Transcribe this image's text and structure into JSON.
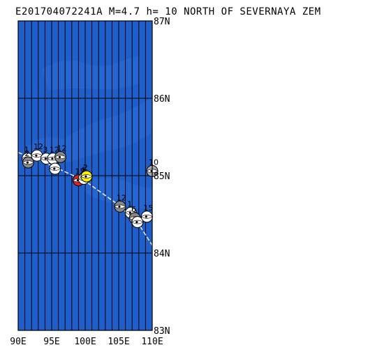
{
  "map": {
    "title": "E201704072241A M=4.7 h= 10 NORTH OF SEVERNAYA ZEM",
    "extent": {
      "lon_min": 90,
      "lon_max": 110,
      "lat_min": 83,
      "lat_max": 87
    },
    "meridian_step_deg": 1,
    "parallel_step_deg": 1,
    "colors": {
      "ocean": "#1f5fcc",
      "land": "#2a6cd8",
      "grid": "#000000",
      "track": "#e8e8e8"
    },
    "lat_labels": [
      {
        "lat": 87,
        "text": "87N"
      },
      {
        "lat": 86,
        "text": "86N"
      },
      {
        "lat": 85,
        "text": "85N"
      },
      {
        "lat": 84,
        "text": "84N"
      },
      {
        "lat": 83,
        "text": "83N"
      }
    ],
    "lon_labels": [
      {
        "lon": 90,
        "text": "90E"
      },
      {
        "lon": 95,
        "text": "95E"
      },
      {
        "lon": 100,
        "text": "100E"
      },
      {
        "lon": 105,
        "text": "105E"
      },
      {
        "lon": 110,
        "text": "110E"
      }
    ],
    "track_line": [
      {
        "lon": 90.0,
        "lat": 85.3
      },
      {
        "lon": 95.0,
        "lat": 85.13
      },
      {
        "lon": 100.0,
        "lat": 84.93
      },
      {
        "lon": 105.0,
        "lat": 84.62
      },
      {
        "lon": 108.0,
        "lat": 84.37
      },
      {
        "lon": 110.0,
        "lat": 84.1
      }
    ],
    "mechanisms": [
      {
        "lon": 91.4,
        "lat": 85.22,
        "label": "1",
        "fill": "#ffffff"
      },
      {
        "lon": 91.5,
        "lat": 85.17,
        "label": "2",
        "fill": "#888888"
      },
      {
        "lon": 92.8,
        "lat": 85.26,
        "label": "12",
        "fill": "#ffffff"
      },
      {
        "lon": 94.2,
        "lat": 85.22,
        "label": "3",
        "fill": "#ffffff"
      },
      {
        "lon": 95.2,
        "lat": 85.22,
        "label": "12",
        "fill": "#ffffff"
      },
      {
        "lon": 96.3,
        "lat": 85.24,
        "label": "12",
        "fill": "#888888"
      },
      {
        "lon": 95.5,
        "lat": 85.09,
        "label": "",
        "fill": "#ffffff"
      },
      {
        "lon": 99.0,
        "lat": 84.94,
        "label": "12",
        "fill": "#dd2222"
      },
      {
        "lon": 99.8,
        "lat": 84.96,
        "label": "4",
        "fill": "#ffffff"
      },
      {
        "lon": 100.2,
        "lat": 84.99,
        "label": "2",
        "fill": "#ffee00"
      },
      {
        "lon": 110.0,
        "lat": 85.06,
        "label": "10",
        "fill": "#aaaaaa"
      },
      {
        "lon": 105.2,
        "lat": 84.6,
        "label": "12",
        "fill": "#888888"
      },
      {
        "lon": 106.8,
        "lat": 84.52,
        "label": "1",
        "fill": "#ffffff"
      },
      {
        "lon": 107.4,
        "lat": 84.45,
        "label": "6",
        "fill": "#888888"
      },
      {
        "lon": 107.8,
        "lat": 84.4,
        "label": "",
        "fill": "#ffffff"
      },
      {
        "lon": 109.2,
        "lat": 84.47,
        "label": "15",
        "fill": "#ffffff"
      }
    ]
  }
}
